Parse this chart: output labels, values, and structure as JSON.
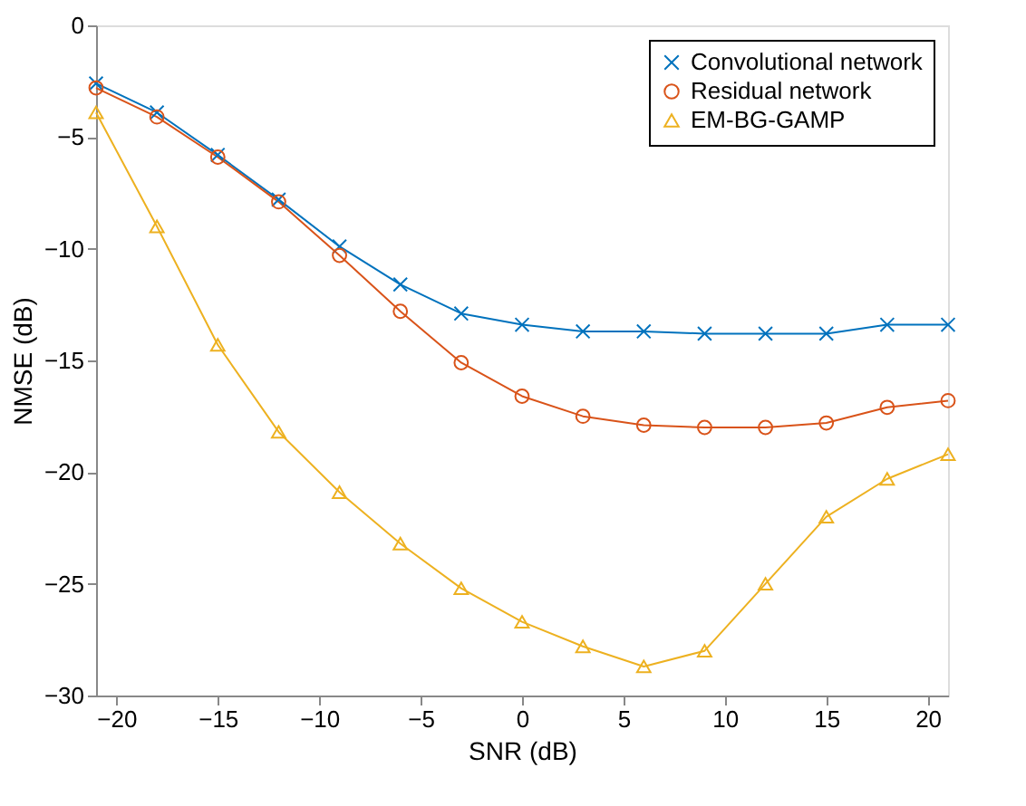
{
  "chart_data": {
    "type": "line",
    "xlabel": "SNR (dB)",
    "ylabel": "NMSE (dB)",
    "x": [
      -21,
      -18,
      -15,
      -12,
      -9,
      -6,
      -3,
      0,
      3,
      6,
      9,
      12,
      15,
      18,
      21
    ],
    "xlim": [
      -21,
      21
    ],
    "xticks": [
      -20,
      -15,
      -10,
      -5,
      0,
      5,
      10,
      15,
      20
    ],
    "ylim": [
      -30,
      0
    ],
    "yticks": [
      -30,
      -25,
      -20,
      -15,
      -10,
      -5,
      0
    ],
    "grid": false,
    "legend": "top right",
    "line_style": "solid",
    "series": [
      {
        "name": "Convolutional network",
        "color": "#0072bd",
        "marker": "cross",
        "values": [
          -2.6,
          -3.9,
          -5.8,
          -7.8,
          -9.9,
          -11.6,
          -12.9,
          -13.4,
          -13.7,
          -13.7,
          -13.8,
          -13.8,
          -13.8,
          -13.4,
          -13.4
        ]
      },
      {
        "name": "Residual network",
        "color": "#d95319",
        "marker": "circle",
        "values": [
          -2.8,
          -4.1,
          -5.9,
          -7.9,
          -10.3,
          -12.8,
          -15.1,
          -16.6,
          -17.5,
          -17.9,
          -18.0,
          -18.0,
          -17.8,
          -17.1,
          -16.8
        ]
      },
      {
        "name": "EM-BG-GAMP",
        "color": "#edb120",
        "marker": "triangle",
        "values": [
          -3.9,
          -9.0,
          -14.3,
          -18.2,
          -20.9,
          -23.2,
          -25.2,
          -26.7,
          -27.8,
          -28.7,
          -28.0,
          -25.0,
          -22.0,
          -20.3,
          -19.2
        ]
      }
    ]
  }
}
